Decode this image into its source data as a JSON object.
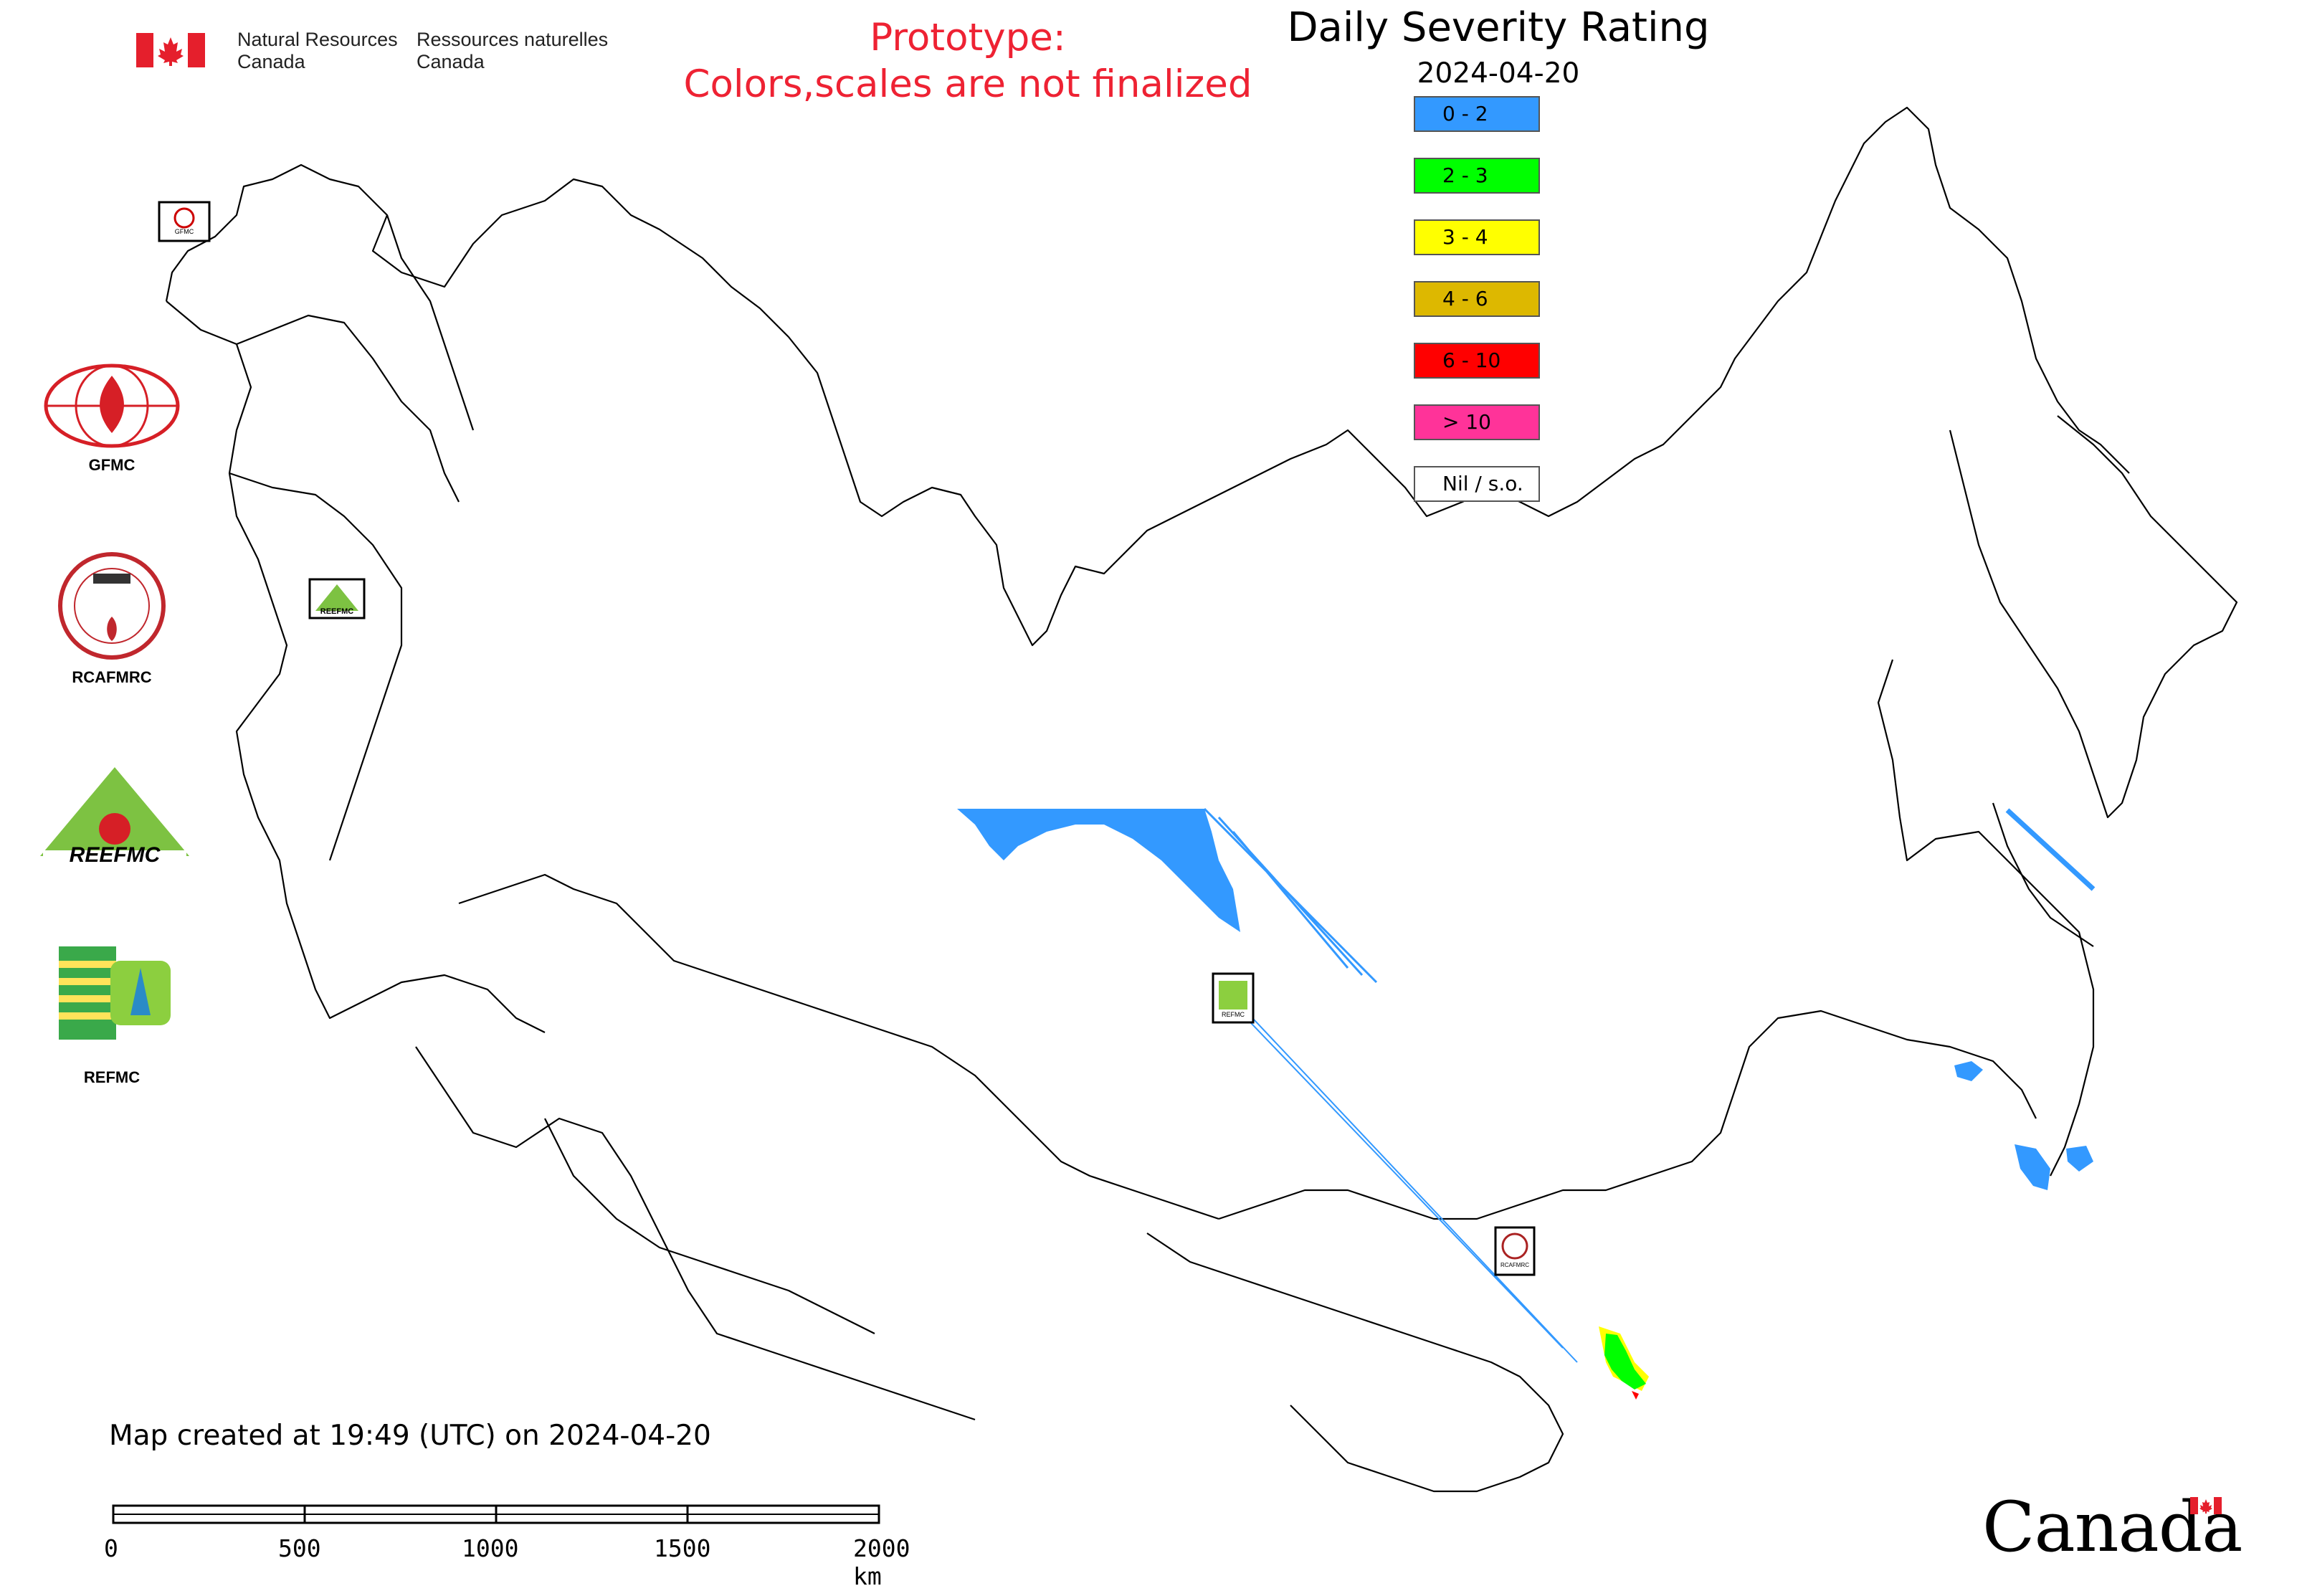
{
  "header": {
    "org_en_line1": "Natural Resources",
    "org_en_line2": "Canada",
    "org_fr_line1": "Ressources naturelles",
    "org_fr_line2": "Canada"
  },
  "prototype_notice": {
    "line1": "Prototype:",
    "line2": "Colors,scales are not finalized",
    "color": "#ee2233"
  },
  "title": "Daily Severity Rating",
  "date": "2024-04-20",
  "legend": [
    {
      "label": "0 - 2",
      "color": "#3399ff"
    },
    {
      "label": "2 - 3",
      "color": "#00ff00"
    },
    {
      "label": "3 - 4",
      "color": "#ffff00"
    },
    {
      "label": "4 - 6",
      "color": "#ddb800"
    },
    {
      "label": "6 - 10",
      "color": "#ff0000"
    },
    {
      "label": "> 10",
      "color": "#ff3399"
    },
    {
      "label": "Nil / s.o.",
      "color": "#ffffff"
    }
  ],
  "agencies": [
    {
      "label": "GFMC",
      "icon": "gfmc-logo-icon"
    },
    {
      "label": "RCAFMRC",
      "icon": "rcafmrc-logo-icon"
    },
    {
      "label": "REEFMC",
      "icon": "reefmc-logo-icon"
    },
    {
      "label": "REFMC",
      "icon": "refmc-logo-icon"
    }
  ],
  "map_markers": [
    {
      "label": "GFMC"
    },
    {
      "label": "REEFMC"
    },
    {
      "label": "REFMC"
    },
    {
      "label": "RCAFMRC"
    }
  ],
  "footer": {
    "created": "Map created at 19:49 (UTC) on 2024-04-20",
    "scale_ticks": [
      "0",
      "500",
      "1000",
      "1500",
      "2000 km"
    ],
    "wordmark": "Canada"
  }
}
